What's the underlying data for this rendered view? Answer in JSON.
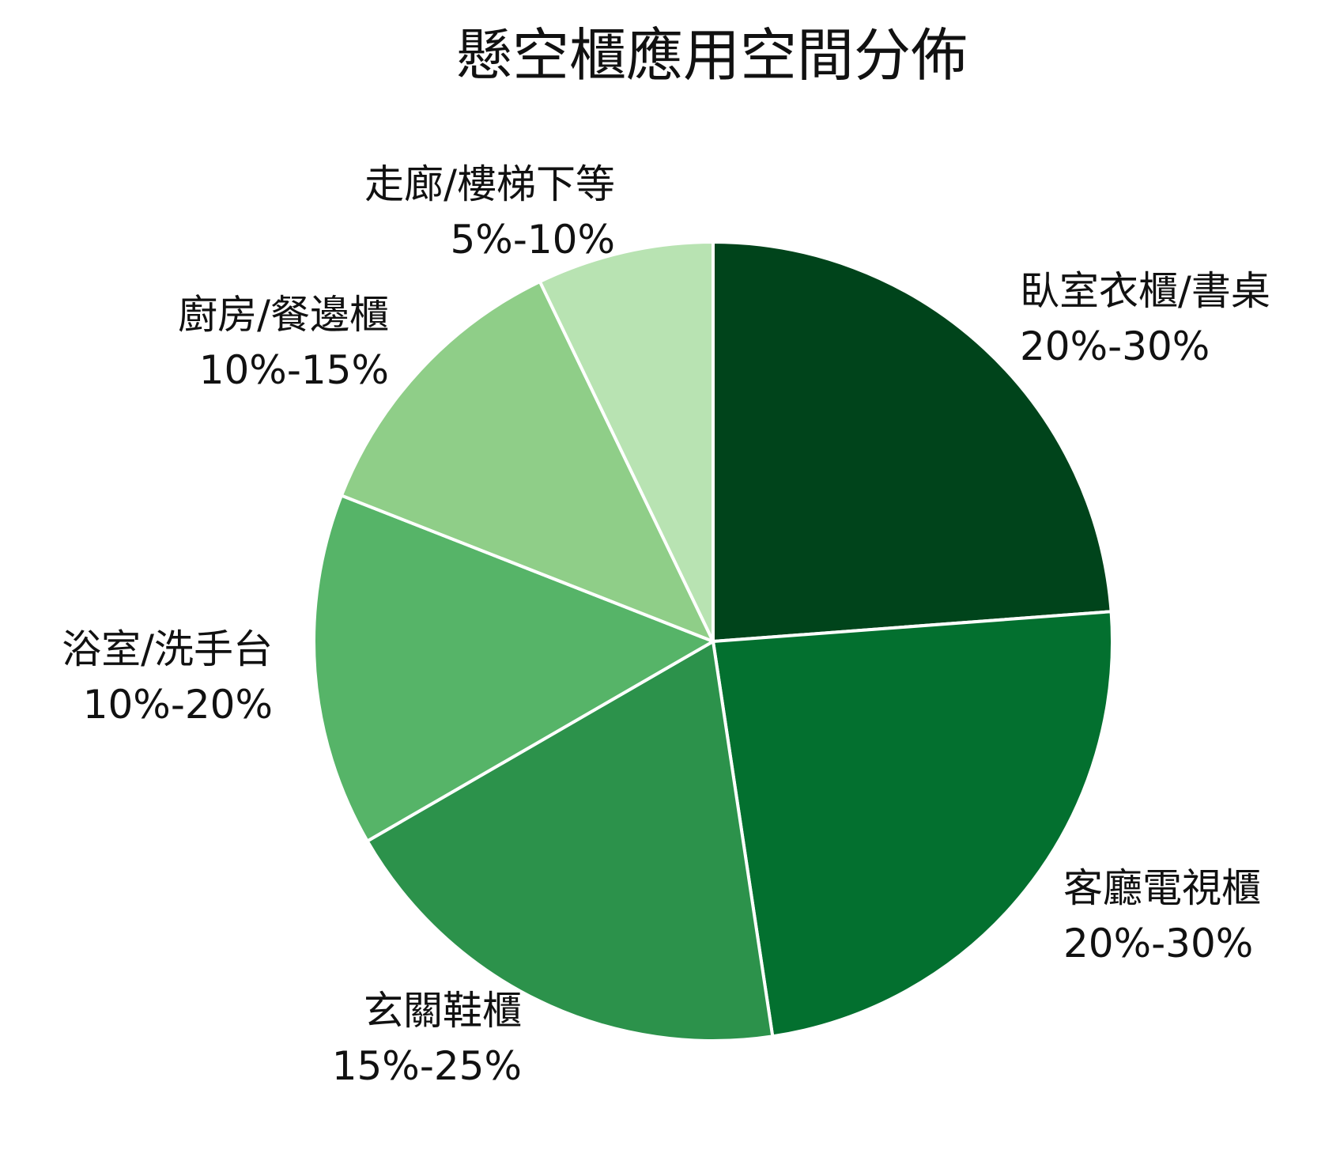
{
  "chart_data": {
    "type": "pie",
    "title": "懸空櫃應用空間分佈",
    "start_angle_deg": 0,
    "direction": "clockwise",
    "slices": [
      {
        "label": "臥室衣櫃/書桌",
        "range": "20%-30%",
        "value": 25,
        "color": "#00441b"
      },
      {
        "label": "客廳電視櫃",
        "range": "20%-30%",
        "value": 25,
        "color": "#03702f"
      },
      {
        "label": "玄關鞋櫃",
        "range": "15%-25%",
        "value": 20,
        "color": "#2c924b"
      },
      {
        "label": "浴室/洗手台",
        "range": "10%-20%",
        "value": 15,
        "color": "#56b468"
      },
      {
        "label": "廚房/餐邊櫃",
        "range": "10%-15%",
        "value": 12.5,
        "color": "#8fce88"
      },
      {
        "label": "走廊/樓梯下等",
        "range": "5%-10%",
        "value": 7.5,
        "color": "#b8e3b2"
      }
    ],
    "edge_color": "#ffffff"
  }
}
